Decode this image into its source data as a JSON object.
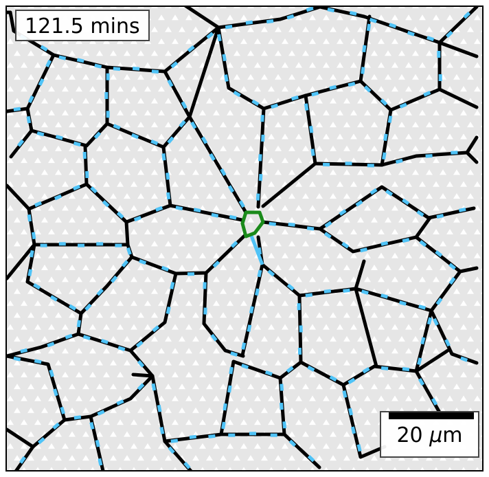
{
  "overlay": {
    "timestamp": "121.5 mins",
    "scale_value": "20",
    "scale_unit_symbol": "μ",
    "scale_unit_suffix": "m"
  },
  "colors": {
    "background": "#e6e6e6",
    "pattern": "#ffffff",
    "cell_edges": "#000000",
    "edge_markers": "#4fc3f7",
    "highlight_cell": "#1a8a1a"
  }
}
